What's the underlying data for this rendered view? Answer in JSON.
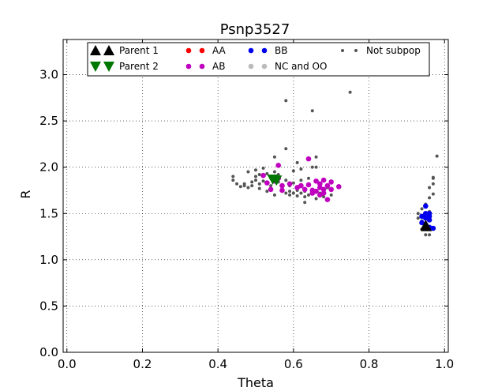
{
  "chart_data": {
    "type": "scatter",
    "title": "Psnp3527",
    "xlabel": "Theta",
    "ylabel": "R",
    "xlim": [
      -0.01,
      1.01
    ],
    "ylim": [
      0.0,
      3.38
    ],
    "xticks": [
      "0.0",
      "0.2",
      "0.4",
      "0.6",
      "0.8",
      "1.0"
    ],
    "xtick_values": [
      0.0,
      0.2,
      0.4,
      0.6,
      0.8,
      1.0
    ],
    "yticks": [
      "0.0",
      "0.5",
      "1.0",
      "1.5",
      "2.0",
      "2.5",
      "3.0"
    ],
    "ytick_values": [
      0.0,
      0.5,
      1.0,
      1.5,
      2.0,
      2.5,
      3.0
    ],
    "grid": true,
    "legend_position": "top",
    "series": [
      {
        "name": "Not subpop",
        "color": "#555555",
        "marker": "small-dot",
        "points": [
          [
            0.44,
            1.9
          ],
          [
            0.44,
            1.86
          ],
          [
            0.45,
            1.82
          ],
          [
            0.46,
            1.79
          ],
          [
            0.47,
            1.82
          ],
          [
            0.47,
            1.8
          ],
          [
            0.48,
            1.95
          ],
          [
            0.48,
            1.78
          ],
          [
            0.49,
            1.84
          ],
          [
            0.49,
            1.8
          ],
          [
            0.5,
            1.9
          ],
          [
            0.5,
            1.86
          ],
          [
            0.5,
            1.97
          ],
          [
            0.51,
            1.82
          ],
          [
            0.51,
            1.77
          ],
          [
            0.51,
            1.92
          ],
          [
            0.52,
            1.85
          ],
          [
            0.52,
            1.99
          ],
          [
            0.53,
            1.74
          ],
          [
            0.53,
            1.93
          ],
          [
            0.54,
            1.88
          ],
          [
            0.54,
            1.8
          ],
          [
            0.55,
            1.95
          ],
          [
            0.55,
            2.11
          ],
          [
            0.55,
            1.7
          ],
          [
            0.56,
            1.84
          ],
          [
            0.56,
            1.92
          ],
          [
            0.57,
            1.78
          ],
          [
            0.57,
            1.76
          ],
          [
            0.58,
            1.72
          ],
          [
            0.58,
            1.86
          ],
          [
            0.58,
            2.72
          ],
          [
            0.58,
            2.2
          ],
          [
            0.59,
            1.74
          ],
          [
            0.59,
            1.7
          ],
          [
            0.59,
            1.8
          ],
          [
            0.6,
            1.83
          ],
          [
            0.6,
            1.72
          ],
          [
            0.6,
            1.96
          ],
          [
            0.61,
            2.05
          ],
          [
            0.61,
            1.75
          ],
          [
            0.61,
            1.69
          ],
          [
            0.62,
            1.98
          ],
          [
            0.62,
            1.72
          ],
          [
            0.62,
            1.86
          ],
          [
            0.63,
            1.68
          ],
          [
            0.63,
            1.74
          ],
          [
            0.63,
            1.62
          ],
          [
            0.64,
            1.8
          ],
          [
            0.64,
            1.7
          ],
          [
            0.64,
            1.88
          ],
          [
            0.65,
            2.61
          ],
          [
            0.65,
            2.0
          ],
          [
            0.65,
            1.76
          ],
          [
            0.66,
            1.66
          ],
          [
            0.66,
            2.11
          ],
          [
            0.66,
            2.0
          ],
          [
            0.67,
            1.8
          ],
          [
            0.67,
            1.72
          ],
          [
            0.68,
            1.74
          ],
          [
            0.68,
            1.68
          ],
          [
            0.69,
            1.78
          ],
          [
            0.7,
            1.7
          ],
          [
            0.75,
            2.81
          ],
          [
            0.93,
            1.5
          ],
          [
            0.93,
            1.45
          ],
          [
            0.94,
            1.42
          ],
          [
            0.94,
            1.55
          ],
          [
            0.94,
            1.33
          ],
          [
            0.95,
            1.27
          ],
          [
            0.95,
            1.6
          ],
          [
            0.95,
            1.48
          ],
          [
            0.95,
            1.38
          ],
          [
            0.96,
            1.27
          ],
          [
            0.96,
            1.78
          ],
          [
            0.96,
            1.67
          ],
          [
            0.96,
            1.52
          ],
          [
            0.97,
            1.89
          ],
          [
            0.97,
            1.71
          ],
          [
            0.97,
            1.82
          ],
          [
            0.97,
            1.88
          ],
          [
            0.98,
            2.12
          ]
        ]
      },
      {
        "name": "AA",
        "color": "#ff0000",
        "marker": "dot",
        "points": []
      },
      {
        "name": "AB",
        "color": "#bf00bf",
        "marker": "dot",
        "points": [
          [
            0.52,
            1.91
          ],
          [
            0.53,
            1.83
          ],
          [
            0.54,
            1.76
          ],
          [
            0.55,
            1.85
          ],
          [
            0.56,
            2.02
          ],
          [
            0.56,
            1.88
          ],
          [
            0.57,
            1.8
          ],
          [
            0.57,
            1.75
          ],
          [
            0.59,
            1.82
          ],
          [
            0.61,
            1.78
          ],
          [
            0.62,
            1.8
          ],
          [
            0.63,
            1.76
          ],
          [
            0.64,
            2.09
          ],
          [
            0.64,
            1.81
          ],
          [
            0.65,
            1.75
          ],
          [
            0.65,
            1.72
          ],
          [
            0.66,
            1.85
          ],
          [
            0.66,
            1.74
          ],
          [
            0.67,
            1.78
          ],
          [
            0.67,
            1.7
          ],
          [
            0.67,
            1.82
          ],
          [
            0.68,
            1.72
          ],
          [
            0.68,
            1.86
          ],
          [
            0.68,
            1.76
          ],
          [
            0.69,
            1.8
          ],
          [
            0.69,
            1.65
          ],
          [
            0.7,
            1.84
          ],
          [
            0.7,
            1.76
          ],
          [
            0.72,
            1.79
          ]
        ]
      },
      {
        "name": "BB",
        "color": "#0000ee",
        "marker": "dot",
        "points": [
          [
            0.94,
            1.47
          ],
          [
            0.94,
            1.4
          ],
          [
            0.95,
            1.58
          ],
          [
            0.95,
            1.5
          ],
          [
            0.95,
            1.45
          ],
          [
            0.95,
            1.38
          ],
          [
            0.96,
            1.5
          ],
          [
            0.96,
            1.43
          ],
          [
            0.96,
            1.35
          ],
          [
            0.96,
            1.47
          ],
          [
            0.97,
            1.34
          ]
        ]
      },
      {
        "name": "NC and OO",
        "color": "#bbbbbb",
        "marker": "dot",
        "points": []
      },
      {
        "name": "Parent 1",
        "color": "#000000",
        "marker": "triangle-up",
        "points": [
          [
            0.95,
            1.37
          ],
          [
            0.952,
            1.36
          ]
        ]
      },
      {
        "name": "Parent 2",
        "color": "#007700",
        "marker": "triangle-down",
        "points": [
          [
            0.545,
            1.87
          ],
          [
            0.555,
            1.86
          ]
        ]
      }
    ],
    "legend": [
      {
        "label": "Parent 1",
        "color": "#000000",
        "marker": "triangle-up"
      },
      {
        "label": "Parent 2",
        "color": "#007700",
        "marker": "triangle-down"
      },
      {
        "label": "AA",
        "color": "#ff0000",
        "marker": "dot"
      },
      {
        "label": "AB",
        "color": "#bf00bf",
        "marker": "dot"
      },
      {
        "label": "BB",
        "color": "#0000ee",
        "marker": "dot"
      },
      {
        "label": "NC and OO",
        "color": "#bbbbbb",
        "marker": "dot"
      },
      {
        "label": "Not subpop",
        "color": "#555555",
        "marker": "small-dot"
      }
    ]
  }
}
